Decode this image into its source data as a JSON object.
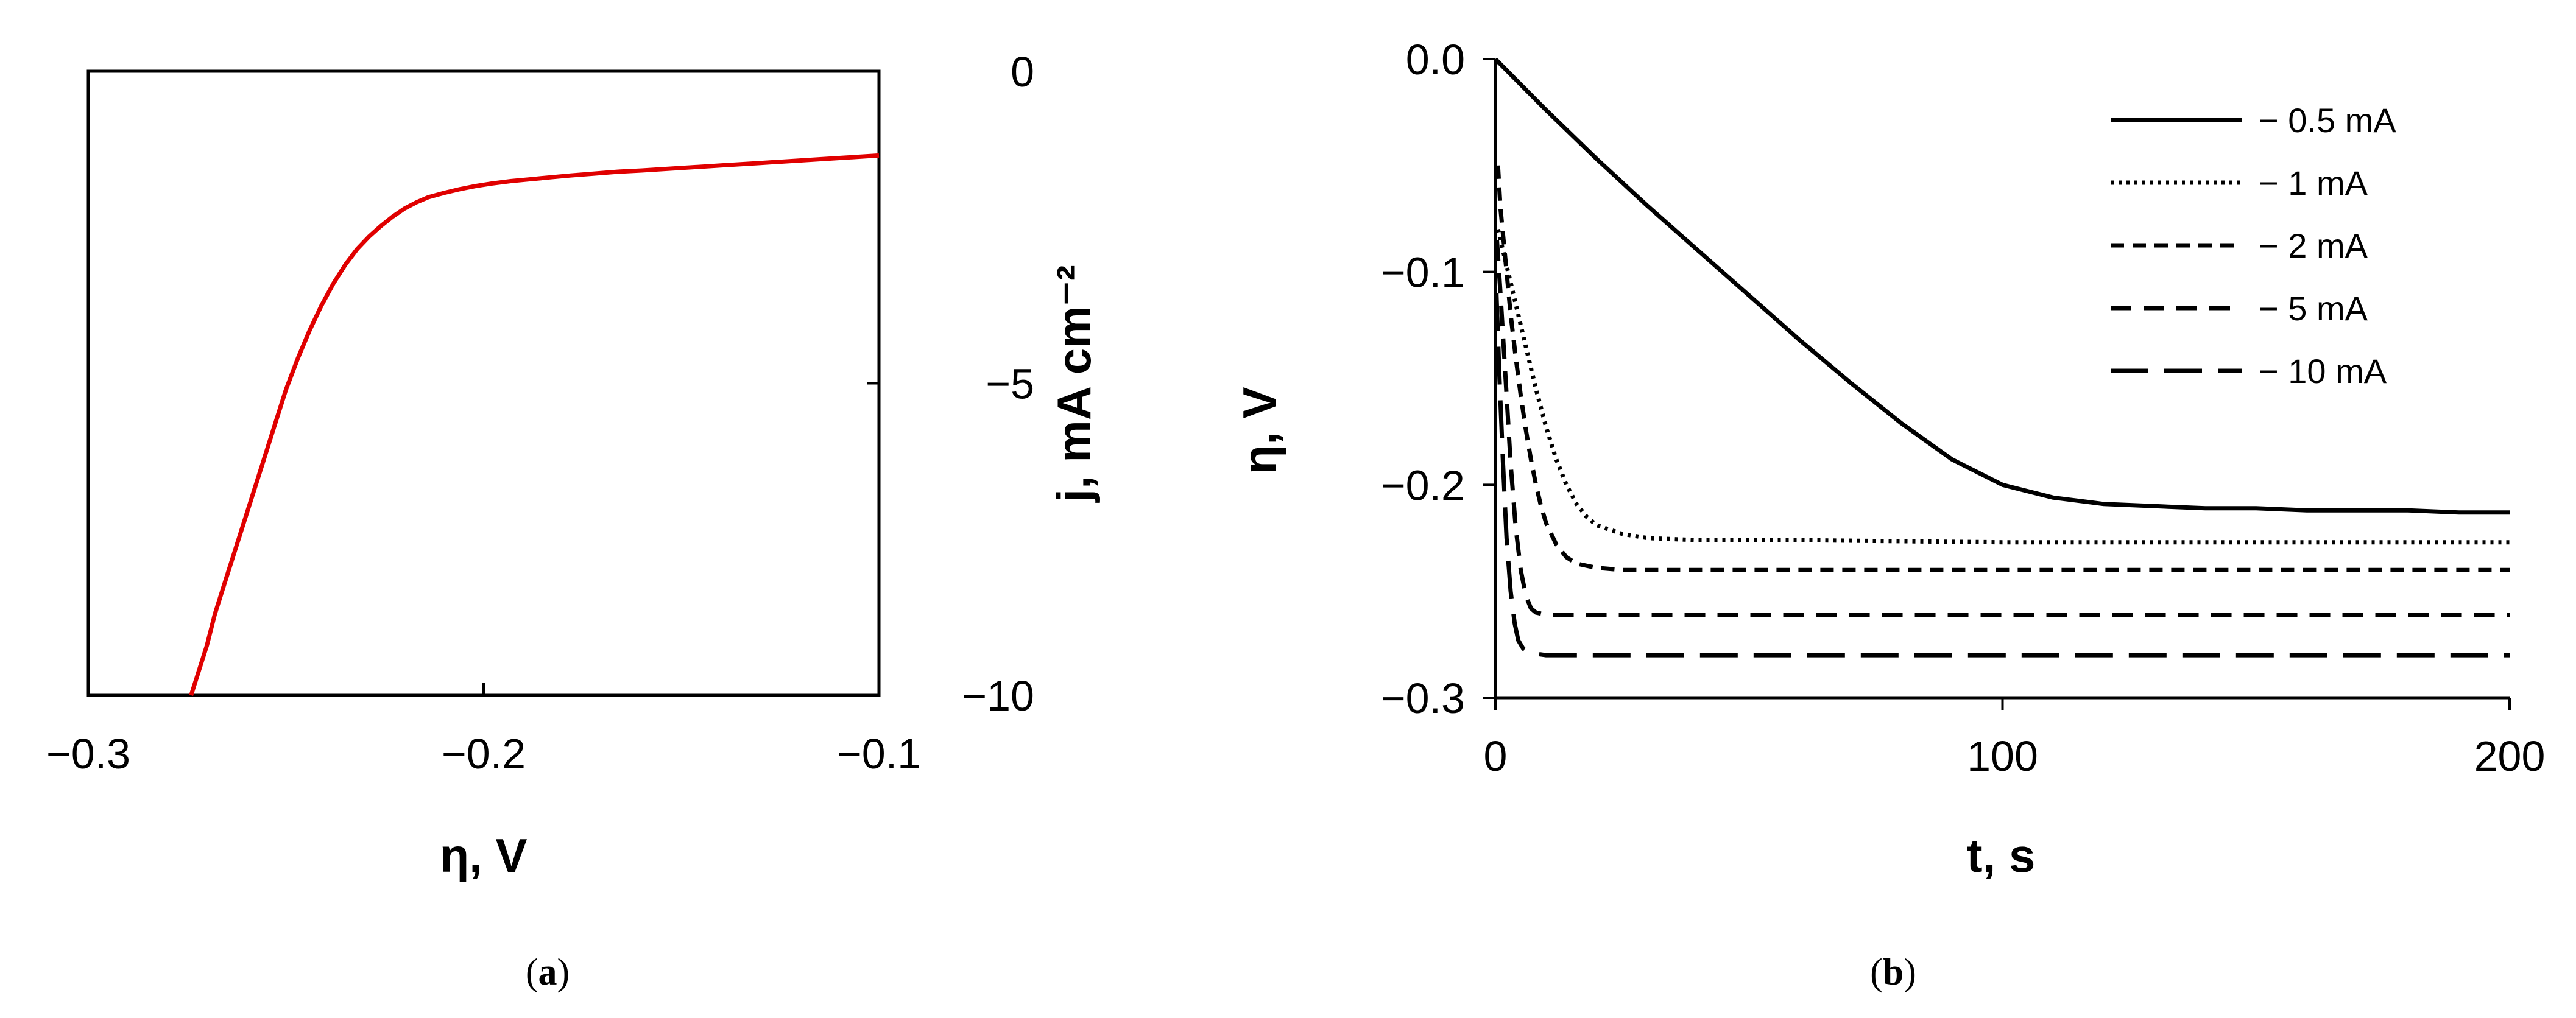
{
  "chart_data": [
    {
      "type": "line",
      "panel": "a",
      "caption_letter": "a",
      "caption_open": "(",
      "caption_close": ")",
      "xlabel": "η, V",
      "ylabel": "j, mA cm⁻²",
      "xlim": [
        -0.3,
        -0.1
      ],
      "ylim": [
        -10,
        0
      ],
      "xticks": [
        -0.3,
        -0.2,
        -0.1
      ],
      "xtick_labels": [
        "−0.3",
        "−0.2",
        "−0.1"
      ],
      "yticks": [
        0,
        -5,
        -10
      ],
      "ytick_labels": [
        "0",
        "−5",
        "−10"
      ],
      "y_axis_side": "right",
      "grid": false,
      "series": [
        {
          "color": "#e00000",
          "style": "solid",
          "x": [
            -0.274,
            -0.272,
            -0.27,
            -0.268,
            -0.265,
            -0.262,
            -0.259,
            -0.256,
            -0.253,
            -0.25,
            -0.247,
            -0.244,
            -0.241,
            -0.238,
            -0.235,
            -0.232,
            -0.229,
            -0.226,
            -0.223,
            -0.22,
            -0.217,
            -0.214,
            -0.21,
            -0.206,
            -0.202,
            -0.198,
            -0.193,
            -0.188,
            -0.183,
            -0.178,
            -0.172,
            -0.166,
            -0.16,
            -0.15,
            -0.14,
            -0.13,
            -0.12,
            -0.11,
            -0.1
          ],
          "y": [
            -10.0,
            -9.6,
            -9.2,
            -8.7,
            -8.1,
            -7.5,
            -6.9,
            -6.3,
            -5.7,
            -5.1,
            -4.6,
            -4.15,
            -3.75,
            -3.4,
            -3.1,
            -2.85,
            -2.65,
            -2.48,
            -2.33,
            -2.2,
            -2.1,
            -2.02,
            -1.95,
            -1.89,
            -1.84,
            -1.8,
            -1.76,
            -1.73,
            -1.7,
            -1.67,
            -1.64,
            -1.61,
            -1.59,
            -1.55,
            -1.51,
            -1.47,
            -1.43,
            -1.39,
            -1.35
          ]
        }
      ]
    },
    {
      "type": "line",
      "panel": "b",
      "caption_letter": "b",
      "caption_open": "(",
      "caption_close": ")",
      "xlabel": "t, s",
      "ylabel": "η, V",
      "xlim": [
        0,
        200
      ],
      "ylim": [
        -0.3,
        0
      ],
      "xticks": [
        0,
        100,
        200
      ],
      "xtick_labels": [
        "0",
        "100",
        "200"
      ],
      "yticks": [
        0,
        -0.1,
        -0.2,
        -0.3
      ],
      "ytick_labels": [
        "0.0",
        "−0.1",
        "−0.2",
        "−0.3"
      ],
      "y_axis_side": "left",
      "legend_position": "top-right",
      "grid": false,
      "series": [
        {
          "name": "− 0.5 mA",
          "style": "solid",
          "x": [
            0,
            10,
            20,
            30,
            40,
            50,
            60,
            70,
            80,
            90,
            100,
            110,
            120,
            130,
            140,
            150,
            160,
            170,
            180,
            190,
            200
          ],
          "y": [
            0.0,
            -0.024,
            -0.047,
            -0.069,
            -0.09,
            -0.111,
            -0.132,
            -0.152,
            -0.171,
            -0.188,
            -0.2,
            -0.206,
            -0.209,
            -0.21,
            -0.211,
            -0.211,
            -0.212,
            -0.212,
            -0.212,
            -0.213,
            -0.213
          ]
        },
        {
          "name": "− 1 mA",
          "style": "dotted",
          "x": [
            0.5,
            2,
            4,
            6,
            8,
            10,
            12,
            14,
            16,
            18,
            20,
            25,
            30,
            40,
            60,
            100,
            150,
            200
          ],
          "y": [
            -0.08,
            -0.095,
            -0.115,
            -0.135,
            -0.155,
            -0.173,
            -0.188,
            -0.2,
            -0.209,
            -0.215,
            -0.219,
            -0.223,
            -0.225,
            -0.226,
            -0.226,
            -0.227,
            -0.227,
            -0.227
          ]
        },
        {
          "name": "− 2 mA",
          "style": "short-dash",
          "x": [
            0.5,
            1,
            2,
            3,
            4,
            5,
            6,
            7,
            8,
            9,
            10,
            12,
            14,
            16,
            20,
            25,
            30,
            60,
            100,
            150,
            200
          ],
          "y": [
            -0.05,
            -0.07,
            -0.095,
            -0.12,
            -0.14,
            -0.158,
            -0.174,
            -0.188,
            -0.2,
            -0.21,
            -0.218,
            -0.228,
            -0.234,
            -0.237,
            -0.239,
            -0.24,
            -0.24,
            -0.24,
            -0.24,
            -0.24,
            -0.24
          ]
        },
        {
          "name": "− 5 mA",
          "style": "dash",
          "x": [
            0.3,
            1,
            2,
            3,
            4,
            5,
            6,
            7,
            8,
            10,
            15,
            20,
            50,
            100,
            150,
            200
          ],
          "y": [
            -0.085,
            -0.11,
            -0.15,
            -0.19,
            -0.22,
            -0.24,
            -0.252,
            -0.258,
            -0.26,
            -0.261,
            -0.261,
            -0.261,
            -0.261,
            -0.261,
            -0.261,
            -0.261
          ]
        },
        {
          "name": "− 10 mA",
          "style": "long-dash",
          "x": [
            0.2,
            0.8,
            1.5,
            2.2,
            3,
            3.8,
            4.5,
            5.5,
            7,
            10,
            20,
            50,
            100,
            150,
            200
          ],
          "y": [
            -0.11,
            -0.15,
            -0.19,
            -0.225,
            -0.25,
            -0.265,
            -0.273,
            -0.277,
            -0.279,
            -0.28,
            -0.28,
            -0.28,
            -0.28,
            -0.28,
            -0.28
          ]
        }
      ]
    }
  ]
}
